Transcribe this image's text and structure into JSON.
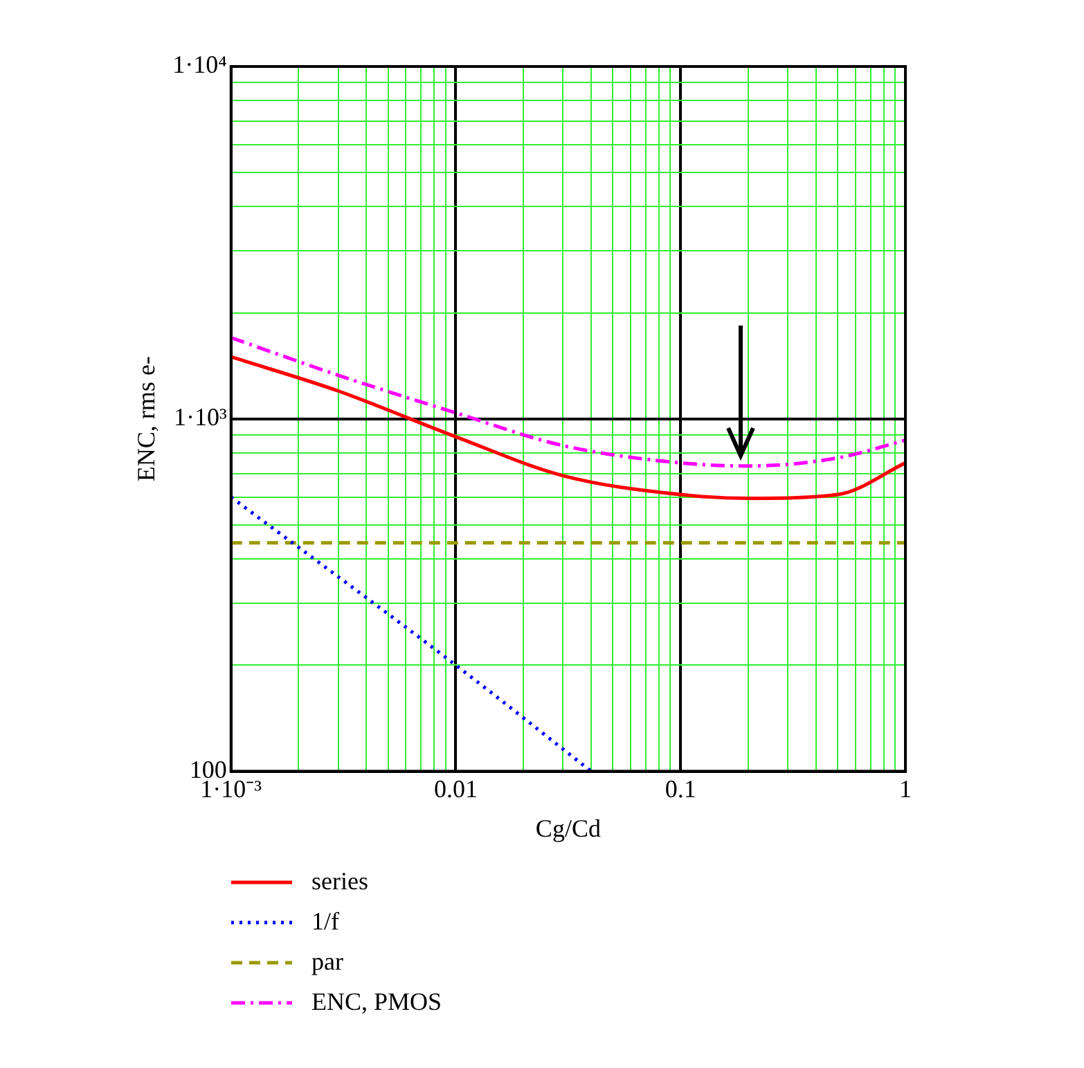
{
  "chart_data": {
    "type": "line",
    "xlabel": "Cg/Cd",
    "ylabel": "ENC, rms e-",
    "log": "xy",
    "xlim": [
      0.001,
      1
    ],
    "ylim": [
      100,
      10000
    ],
    "xticks": [
      {
        "value": 0.001,
        "label": "1·10⁻³"
      },
      {
        "value": 0.002,
        "label": null
      },
      {
        "value": 0.003,
        "label": null
      },
      {
        "value": 0.004,
        "label": null
      },
      {
        "value": 0.005,
        "label": null
      },
      {
        "value": 0.006,
        "label": null
      },
      {
        "value": 0.007,
        "label": null
      },
      {
        "value": 0.008,
        "label": null
      },
      {
        "value": 0.009,
        "label": null
      },
      0.01,
      {
        "value": 0.02,
        "label": null
      },
      {
        "value": 0.03,
        "label": null
      },
      {
        "value": 0.04,
        "label": null
      },
      {
        "value": 0.05,
        "label": null
      },
      {
        "value": 0.06,
        "label": null
      },
      {
        "value": 0.07,
        "label": null
      },
      {
        "value": 0.08,
        "label": null
      },
      {
        "value": 0.09,
        "label": null
      },
      0.1,
      {
        "value": 0.2,
        "label": null
      },
      {
        "value": 0.3,
        "label": null
      },
      {
        "value": 0.4,
        "label": null
      },
      {
        "value": 0.5,
        "label": null
      },
      {
        "value": 0.6,
        "label": null
      },
      {
        "value": 0.7,
        "label": null
      },
      {
        "value": 0.8,
        "label": null
      },
      {
        "value": 0.9,
        "label": null
      },
      1
    ],
    "yticks": [
      100,
      {
        "value": 200,
        "label": null
      },
      {
        "value": 300,
        "label": null
      },
      {
        "value": 400,
        "label": null
      },
      {
        "value": 500,
        "label": null
      },
      {
        "value": 600,
        "label": null
      },
      {
        "value": 700,
        "label": null
      },
      {
        "value": 800,
        "label": null
      },
      {
        "value": 900,
        "label": null
      },
      {
        "value": 1000,
        "label": "1·10³"
      },
      {
        "value": 2000,
        "label": null
      },
      {
        "value": 3000,
        "label": null
      },
      {
        "value": 4000,
        "label": null
      },
      {
        "value": 5000,
        "label": null
      },
      {
        "value": 6000,
        "label": null
      },
      {
        "value": 7000,
        "label": null
      },
      {
        "value": 8000,
        "label": null
      },
      {
        "value": 9000,
        "label": null
      },
      {
        "value": 10000,
        "label": "1·10⁴"
      }
    ],
    "grid": true,
    "legend": "bottom",
    "marker": "none",
    "series": [
      {
        "name": "series",
        "color": "#ff0000",
        "line_style": "solid",
        "x": [
          0.001,
          0.003,
          0.01,
          0.03,
          0.1,
          0.2,
          0.5,
          1
        ],
        "values": [
          1500,
          1200,
          890,
          690,
          610,
          595,
          610,
          750
        ]
      },
      {
        "name": "1/f",
        "color": "#0000ff",
        "line_style": "dotted",
        "x": [
          0.001,
          0.01,
          0.04
        ],
        "values": [
          600,
          200,
          100
        ]
      },
      {
        "name": "par",
        "color": "#999900",
        "line_style": "dashed",
        "x": [
          0.001,
          1
        ],
        "values": [
          445,
          445
        ]
      },
      {
        "name": "ENC, PMOS",
        "color": "#ff00ff",
        "line_style": "dashdot",
        "x": [
          0.001,
          0.003,
          0.01,
          0.03,
          0.1,
          0.2,
          0.5,
          1
        ],
        "values": [
          1700,
          1330,
          1040,
          840,
          750,
          735,
          775,
          870
        ]
      }
    ]
  }
}
